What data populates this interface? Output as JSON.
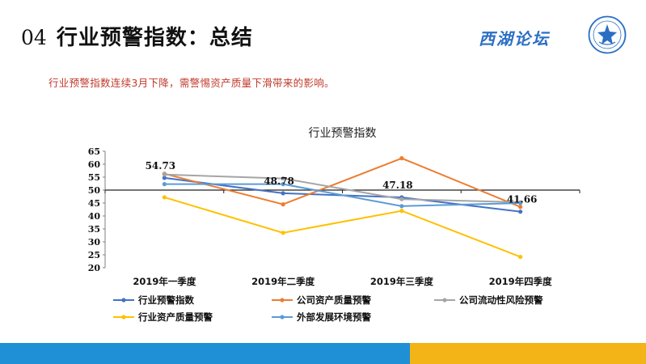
{
  "slide": {
    "number": "04",
    "title": "行业预警指数：总结",
    "subtitle": "行业预警指数连续3月下降，需警惕资产质量下滑带来的影响。",
    "brand": "西湖论坛"
  },
  "colors": {
    "subtitle": "#c0392b",
    "brand": "#2a6fc4",
    "bar_blue": "#1f8fd6",
    "bar_yellow": "#f2b416"
  },
  "chart_data": {
    "type": "line",
    "title": "行业预警指数",
    "categories": [
      "2019年一季度",
      "2019年二季度",
      "2019年三季度",
      "2019年四季度"
    ],
    "ylim": [
      20,
      65
    ],
    "yticks": [
      20,
      25,
      30,
      35,
      40,
      45,
      50,
      55,
      60,
      65
    ],
    "baseline": 50,
    "grid": false,
    "legend_position": "bottom",
    "series": [
      {
        "name": "行业预警指数",
        "color": "#4472c4",
        "values": [
          54.73,
          48.78,
          47.18,
          41.66
        ],
        "data_labels": [
          "54.73",
          "48.78",
          "47.18",
          "41.66"
        ]
      },
      {
        "name": "公司资产质量预警",
        "color": "#ed7d31",
        "values": [
          56.3,
          44.5,
          62.3,
          43.5
        ]
      },
      {
        "name": "公司流动性风险预警",
        "color": "#a5a5a5",
        "values": [
          56.0,
          54.5,
          46.5,
          45.3
        ]
      },
      {
        "name": "行业资产质量预警",
        "color": "#ffc000",
        "values": [
          47.2,
          33.5,
          42.0,
          24.2
        ]
      },
      {
        "name": "外部发展环境预警",
        "color": "#5b9bd5",
        "values": [
          52.3,
          52.3,
          43.8,
          45.0
        ]
      }
    ]
  }
}
